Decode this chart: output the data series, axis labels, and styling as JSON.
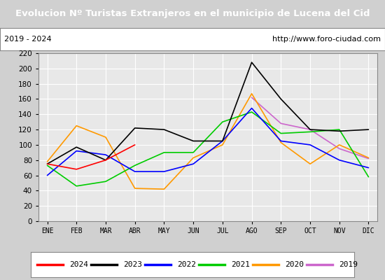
{
  "title": "Evolucion Nº Turistas Extranjeros en el municipio de Lucena del Cid",
  "subtitle_left": "2019 - 2024",
  "subtitle_right": "http://www.foro-ciudad.com",
  "title_bg_color": "#4a7fc1",
  "title_text_color": "#ffffff",
  "subtitle_bg_color": "#ffffff",
  "plot_bg_color": "#e8e8e8",
  "months": [
    "ENE",
    "FEB",
    "MAR",
    "ABR",
    "MAY",
    "JUN",
    "JUL",
    "AGO",
    "SEP",
    "OCT",
    "NOV",
    "DIC"
  ],
  "series": {
    "2024": {
      "color": "#ff0000",
      "data": [
        75,
        68,
        80,
        100,
        null,
        null,
        null,
        null,
        null,
        null,
        null,
        null
      ]
    },
    "2023": {
      "color": "#000000",
      "data": [
        75,
        97,
        80,
        122,
        120,
        105,
        105,
        208,
        160,
        120,
        118,
        120
      ]
    },
    "2022": {
      "color": "#0000ff",
      "data": [
        60,
        92,
        87,
        65,
        65,
        75,
        105,
        148,
        105,
        100,
        80,
        70
      ]
    },
    "2021": {
      "color": "#00cc00",
      "data": [
        73,
        46,
        52,
        73,
        90,
        90,
        130,
        143,
        115,
        117,
        120,
        58
      ]
    },
    "2020": {
      "color": "#ff9900",
      "data": [
        78,
        125,
        110,
        43,
        42,
        83,
        100,
        167,
        103,
        75,
        100,
        83
      ]
    },
    "2019": {
      "color": "#cc66cc",
      "data": [
        73,
        null,
        null,
        null,
        null,
        null,
        null,
        162,
        128,
        120,
        95,
        82
      ]
    }
  },
  "ylim": [
    0,
    220
  ],
  "yticks": [
    0,
    20,
    40,
    60,
    80,
    100,
    120,
    140,
    160,
    180,
    200,
    220
  ],
  "grid_color": "#ffffff",
  "legend_order": [
    "2024",
    "2023",
    "2022",
    "2021",
    "2020",
    "2019"
  ]
}
